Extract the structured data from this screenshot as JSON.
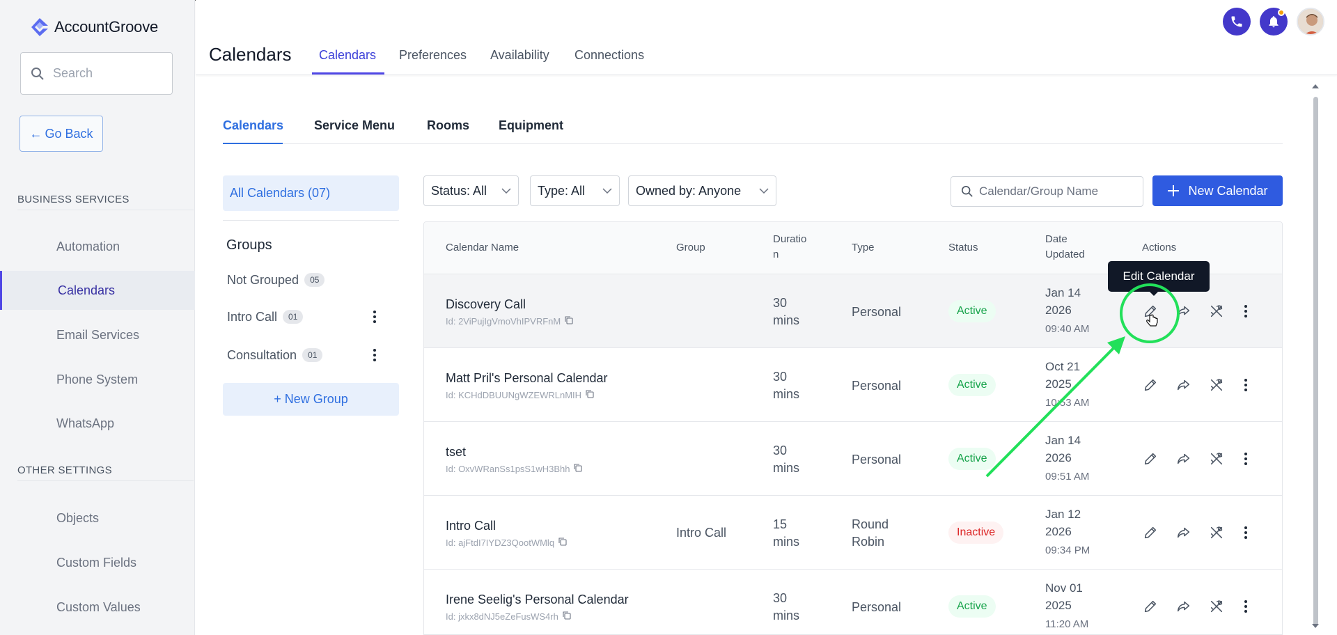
{
  "brand": {
    "name": "AccountGroove"
  },
  "sidebar": {
    "search_placeholder": "Search",
    "go_back": "Go Back",
    "sections": [
      {
        "label": "BUSINESS SERVICES"
      },
      {
        "label": "OTHER SETTINGS"
      }
    ],
    "business_items": [
      {
        "label": "Automation"
      },
      {
        "label": "Calendars",
        "active": true
      },
      {
        "label": "Email Services"
      },
      {
        "label": "Phone System"
      },
      {
        "label": "WhatsApp"
      }
    ],
    "other_items": [
      {
        "label": "Objects"
      },
      {
        "label": "Custom Fields"
      },
      {
        "label": "Custom Values"
      }
    ]
  },
  "header": {
    "title": "Calendars",
    "tabs": [
      {
        "label": "Calendars",
        "active": true
      },
      {
        "label": "Preferences"
      },
      {
        "label": "Availability"
      },
      {
        "label": "Connections"
      }
    ]
  },
  "subtabs": [
    {
      "label": "Calendars",
      "active": true
    },
    {
      "label": "Service Menu"
    },
    {
      "label": "Rooms"
    },
    {
      "label": "Equipment"
    }
  ],
  "groups_panel": {
    "all_calendars": "All Calendars (07)",
    "title": "Groups",
    "items": [
      {
        "label": "Not Grouped",
        "count": "05"
      },
      {
        "label": "Intro Call",
        "count": "01"
      },
      {
        "label": "Consultation",
        "count": "01"
      }
    ],
    "new_group": "+ New Group"
  },
  "filters": {
    "status": "Status: All",
    "type": "Type: All",
    "owner": "Owned by: Anyone",
    "search_placeholder": "Calendar/Group Name",
    "new_calendar": "New Calendar"
  },
  "table": {
    "headers": {
      "name": "Calendar Name",
      "group": "Group",
      "duration_1": "Duratio",
      "duration_2": "n",
      "type": "Type",
      "status": "Status",
      "date_1": "Date",
      "date_2": "Updated",
      "actions": "Actions"
    },
    "rows": [
      {
        "name": "Discovery Call",
        "id": "Id: 2ViPujIgVmoVhIPVRFnM",
        "group": "",
        "dur_1": "30",
        "dur_2": "mins",
        "type_1": "Personal",
        "type_2": "",
        "status": "Active",
        "date_1": "Jan 14",
        "date_2": "2026",
        "time": "09:40 AM"
      },
      {
        "name": "Matt Pril's Personal Calendar",
        "id": "Id: KCHdDBUUNgWZEWRLnMIH",
        "group": "",
        "dur_1": "30",
        "dur_2": "mins",
        "type_1": "Personal",
        "type_2": "",
        "status": "Active",
        "date_1": "Oct 21",
        "date_2": "2025",
        "time": "10:53 AM"
      },
      {
        "name": "tset",
        "id": "Id: OxvWRanSs1psS1wH3Bhh",
        "group": "",
        "dur_1": "30",
        "dur_2": "mins",
        "type_1": "Personal",
        "type_2": "",
        "status": "Active",
        "date_1": "Jan 14",
        "date_2": "2026",
        "time": "09:51 AM"
      },
      {
        "name": "Intro Call",
        "id": "Id: ajFtdI7IYDZ3QootWMlq",
        "group": "Intro Call",
        "dur_1": "15",
        "dur_2": "mins",
        "type_1": "Round",
        "type_2": "Robin",
        "status": "Inactive",
        "date_1": "Jan 12",
        "date_2": "2026",
        "time": "09:34 PM"
      },
      {
        "name": "Irene Seelig's Personal Calendar",
        "id": "Id: jxkx8dNJ5eZeFusWS4rh",
        "group": "",
        "dur_1": "30",
        "dur_2": "mins",
        "type_1": "Personal",
        "type_2": "",
        "status": "Active",
        "date_1": "Nov 01",
        "date_2": "2025",
        "time": "11:20 AM"
      }
    ]
  },
  "tooltip": "Edit Calendar",
  "colors": {
    "accent": "#2f5be0",
    "annotation": "#22e05a",
    "active": "#16a34a",
    "inactive": "#dc2626"
  },
  "icons": [
    "search-icon",
    "arrow-left-icon",
    "phone-icon",
    "bell-icon",
    "chevron-down-icon",
    "plus-icon",
    "copy-icon",
    "pencil-icon",
    "share-icon",
    "tools-icon",
    "kebab-icon"
  ]
}
